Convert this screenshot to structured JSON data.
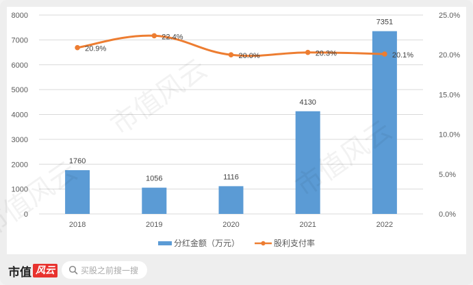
{
  "chart_data": {
    "type": "bar+line",
    "categories": [
      "2018",
      "2019",
      "2020",
      "2021",
      "2022"
    ],
    "series": [
      {
        "name": "分红金额（万元）",
        "type": "bar",
        "axis": "left",
        "color": "#5b9bd5",
        "values": [
          1760,
          1056,
          1116,
          4130,
          7351
        ],
        "labels": [
          "1760",
          "1056",
          "1116",
          "4130",
          "7351"
        ]
      },
      {
        "name": "股利支付率",
        "type": "line",
        "axis": "right",
        "color": "#ed7d31",
        "values": [
          20.9,
          22.4,
          20.0,
          20.3,
          20.1
        ],
        "labels": [
          "20.9%",
          "22.4%",
          "20.0%",
          "20.3%",
          "20.1%"
        ]
      }
    ],
    "title": "",
    "xlabel": "",
    "ylabel": "",
    "ylim": [
      0,
      8000
    ],
    "y2lim": [
      0,
      25
    ],
    "left_ticks": [
      "0",
      "1000",
      "2000",
      "3000",
      "4000",
      "5000",
      "6000",
      "7000",
      "8000"
    ],
    "right_ticks": [
      "0.0%",
      "5.0%",
      "10.0%",
      "15.0%",
      "20.0%",
      "25.0%"
    ],
    "grid": true,
    "legend_position": "bottom"
  },
  "legend": {
    "bar_label": "分红金额（万元）",
    "line_label": "股利支付率"
  },
  "footer": {
    "brand_text": "市值",
    "brand_badge": "风云",
    "search_placeholder": "买股之前搜一搜",
    "search_icon": "search-icon"
  },
  "watermark": "市值风云",
  "colors": {
    "bar": "#5b9bd5",
    "line": "#ed7d31",
    "grid": "#d9d9d9",
    "axis_text": "#595959"
  }
}
